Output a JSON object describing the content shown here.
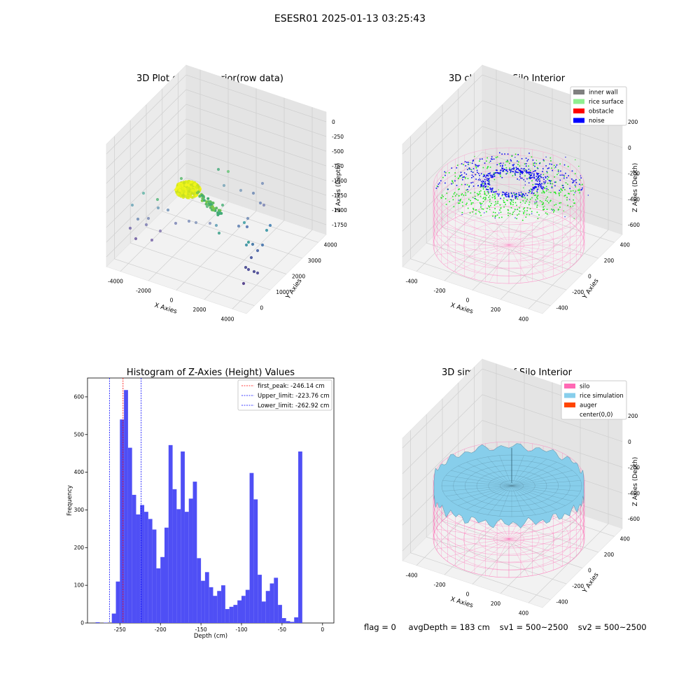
{
  "suptitle": "ESESR01 2025-01-13 03:25:43",
  "footer": {
    "flag": "flag = 0",
    "avg_depth": "avgDepth = 183 cm",
    "sv1": "sv1 = 500~2500",
    "sv2": "sv2 = 500~2500"
  },
  "colors": {
    "inner_wall": "#808080",
    "rice_surface": "#90ee90",
    "obstacle": "#ff0000",
    "noise": "#0000ff",
    "silo": "#ff69b4",
    "rice_simulation": "#87ceeb",
    "auger": "#ff4500",
    "histogram_bar": "#4f4ff5"
  },
  "chart_data": [
    {
      "type": "scatter",
      "title": "3D Plot of Silo Interior(row data)",
      "xlabel": "X Axies",
      "ylabel": "Y Axies",
      "zlabel": "Z Axies (Depth)",
      "x_ticks": [
        "-4000",
        "-2000",
        "0",
        "2000",
        "4000"
      ],
      "y_ticks": [
        "0",
        "1000",
        "2000",
        "3000",
        "4000"
      ],
      "z_ticks": [
        "0",
        "-250",
        "-500",
        "-750",
        "-1000",
        "-1250",
        "-1500",
        "-1750"
      ],
      "grid": true
    },
    {
      "type": "scatter",
      "title": "3D classify of Silo Interior",
      "xlabel": "X Axies",
      "ylabel": "Y Axies",
      "zlabel": "Z Axies (Depth)",
      "x_ticks": [
        "-400",
        "-200",
        "0",
        "200",
        "400"
      ],
      "y_ticks": [
        "-400",
        "-200",
        "0",
        "200",
        "400"
      ],
      "z_ticks": [
        "200",
        "0",
        "-200",
        "-400",
        "-600"
      ],
      "legend": [
        "inner wall",
        "rice surface",
        "obstacle",
        "noise"
      ],
      "legend_position": "top-right",
      "grid": true
    },
    {
      "type": "bar",
      "title": "Histogram of Z-Axies (Height) Values",
      "xlabel": "Depth (cm)",
      "ylabel": "Frequency",
      "xlim": [
        -290,
        14
      ],
      "ylim": [
        0,
        650
      ],
      "bin_width": 5,
      "bins_start": [
        -280,
        -275,
        -270,
        -265,
        -260,
        -255,
        -250,
        -245,
        -240,
        -235,
        -230,
        -225,
        -220,
        -215,
        -210,
        -205,
        -200,
        -195,
        -190,
        -185,
        -180,
        -175,
        -170,
        -165,
        -160,
        -155,
        -150,
        -145,
        -140,
        -135,
        -130,
        -125,
        -120,
        -115,
        -110,
        -105,
        -100,
        -95,
        -90,
        -85,
        -80,
        -75,
        -70,
        -65,
        -60,
        -55,
        -50,
        -45,
        -40,
        -35,
        -30,
        -25,
        -20,
        -15,
        -10,
        -5,
        0
      ],
      "values": [
        2,
        0,
        1,
        0,
        25,
        110,
        540,
        618,
        465,
        340,
        288,
        313,
        295,
        276,
        248,
        145,
        175,
        253,
        472,
        355,
        302,
        455,
        295,
        330,
        375,
        172,
        112,
        135,
        95,
        72,
        85,
        100,
        37,
        43,
        48,
        60,
        72,
        88,
        398,
        328,
        128,
        57,
        85,
        105,
        120,
        48,
        13,
        5,
        3,
        15,
        455,
        0,
        0,
        0,
        0,
        0,
        0
      ],
      "x_ticks": [
        "-250",
        "-200",
        "-150",
        "-100",
        "-50",
        "0"
      ],
      "y_ticks": [
        "0",
        "100",
        "200",
        "300",
        "400",
        "500",
        "600"
      ],
      "lines": [
        {
          "label": "first_peak: -246.14 cm",
          "x": -246.14,
          "color": "#ff0000"
        },
        {
          "label": "Upper_limit: -223.76 cm",
          "x": -223.76,
          "color": "#0000ff"
        },
        {
          "label": "Lower_limit: -262.92 cm",
          "x": -262.92,
          "color": "#0000ff"
        }
      ],
      "legend_position": "top-right"
    },
    {
      "type": "area",
      "title": "3D simulation of Silo Interior",
      "xlabel": "X Axies",
      "ylabel": "Y Axies",
      "zlabel": "Z Axies (Depth)",
      "x_ticks": [
        "-400",
        "-200",
        "0",
        "200",
        "400"
      ],
      "y_ticks": [
        "-400",
        "-200",
        "0",
        "200",
        "400"
      ],
      "z_ticks": [
        "200",
        "0",
        "-200",
        "-400",
        "-600"
      ],
      "legend": [
        "silo",
        "rice simulation",
        "auger",
        "center(0,0)"
      ],
      "legend_position": "top-right",
      "grid": true
    }
  ]
}
